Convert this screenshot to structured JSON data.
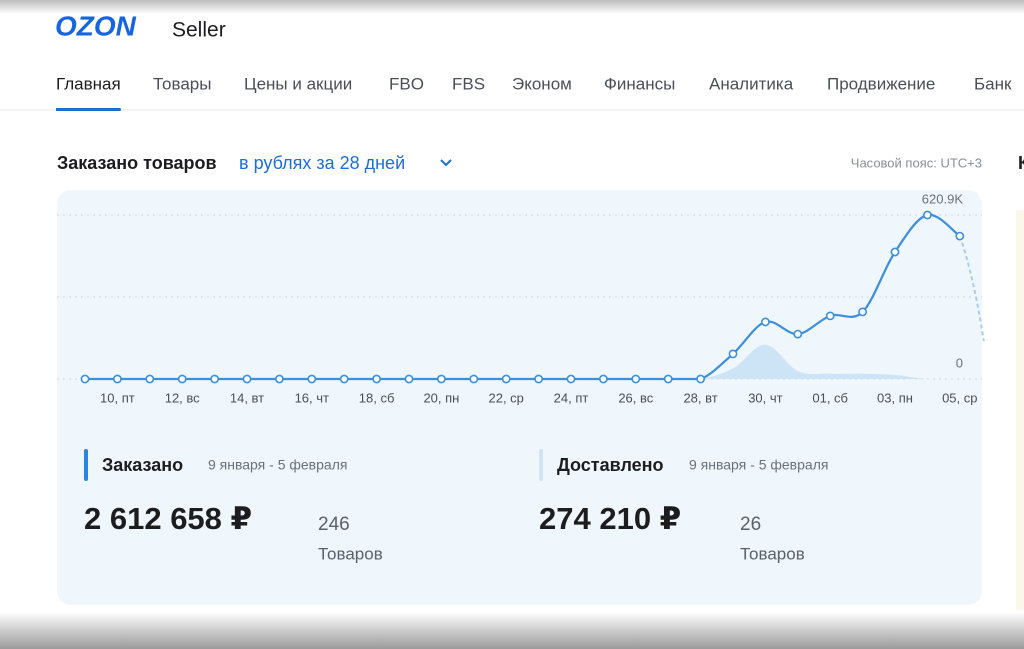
{
  "header": {
    "logo": "OZON",
    "product": "Seller"
  },
  "nav": {
    "items": [
      "Главная",
      "Товары",
      "Цены и акции",
      "FBO",
      "FBS",
      "Эконом",
      "Финансы",
      "Аналитика",
      "Продвижение",
      "Банк"
    ],
    "active": 0
  },
  "section": {
    "title": "Заказано товаров",
    "filter": "в рублях за 28 дней",
    "timezone": "Часовой пояс: UTC+3"
  },
  "side_panel": {
    "title": "К"
  },
  "chart_data": {
    "type": "line",
    "categories": [
      null,
      "10, пт",
      null,
      "12, вс",
      null,
      "14, вт",
      null,
      "16, чт",
      null,
      "18, сб",
      null,
      "20, пн",
      null,
      "22, ср",
      null,
      "24, пт",
      null,
      "26, вс",
      null,
      "28, вт",
      null,
      "30, чт",
      null,
      "01, сб",
      null,
      "03, пн",
      null,
      "05, ср"
    ],
    "series": [
      {
        "name": "Заказано",
        "color": "#3b8fdc",
        "values": [
          0,
          0,
          0,
          0,
          0,
          0,
          0,
          0,
          0,
          0,
          0,
          0,
          0,
          0,
          0,
          0,
          0,
          0,
          0,
          0,
          95000,
          216000,
          170000,
          239000,
          254000,
          481000,
          620900,
          541000
        ]
      },
      {
        "name": "Доставлено",
        "color": "#cde3f6",
        "values": [
          0,
          0,
          0,
          0,
          0,
          0,
          0,
          0,
          0,
          0,
          0,
          0,
          0,
          0,
          0,
          0,
          0,
          0,
          0,
          0,
          40000,
          130000,
          30000,
          20000,
          20000,
          15000,
          0,
          0
        ]
      }
    ],
    "ylim": [
      0,
      620900
    ],
    "yticks": [
      0,
      {
        "value": 620900,
        "label": "620.9K"
      }
    ],
    "grid": true
  },
  "summary": [
    {
      "period": "9 января - 5 февраля",
      "amount": "2 612 658 ₽",
      "count": "246",
      "unit": "Товаров"
    },
    {
      "period": "9 января - 5 февраля",
      "amount": "274 210 ₽",
      "count": "26",
      "unit": "Товаров"
    }
  ]
}
